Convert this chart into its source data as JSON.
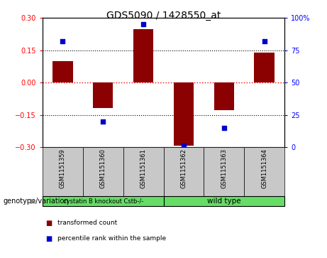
{
  "title": "GDS5090 / 1428550_at",
  "samples": [
    "GSM1151359",
    "GSM1151360",
    "GSM1151361",
    "GSM1151362",
    "GSM1151363",
    "GSM1151364"
  ],
  "bar_values": [
    0.1,
    -0.12,
    0.25,
    -0.295,
    -0.13,
    0.14
  ],
  "percentile_values": [
    82,
    20,
    95,
    1,
    15,
    82
  ],
  "bar_color": "#8B0000",
  "dot_color": "#0000CC",
  "ylim_left": [
    -0.3,
    0.3
  ],
  "ylim_right": [
    0,
    100
  ],
  "yticks_left": [
    -0.3,
    -0.15,
    0,
    0.15,
    0.3
  ],
  "yticks_right": [
    0,
    25,
    50,
    75,
    100
  ],
  "ytick_labels_right": [
    "0",
    "25",
    "50",
    "75",
    "100%"
  ],
  "hlines": [
    0.15,
    -0.15
  ],
  "zero_line": 0.0,
  "group1_label": "cystatin B knockout Cstb-/-",
  "group2_label": "wild type",
  "group_label": "genotype/variation",
  "legend_bar_label": "transformed count",
  "legend_dot_label": "percentile rank within the sample",
  "background_color": "#FFFFFF",
  "plot_bg_color": "#FFFFFF",
  "sample_bg_color": "#C8C8C8",
  "group_color": "#66DD66",
  "bar_width": 0.5
}
